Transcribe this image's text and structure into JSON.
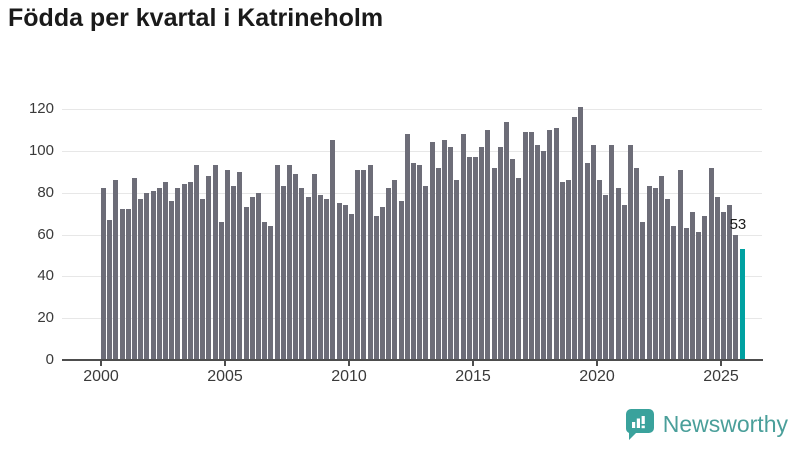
{
  "title": "Födda per kvartal i Katrineholm",
  "annotation": {
    "last_value_label": "53"
  },
  "footer": {
    "brand": "Newsworthy"
  },
  "colors": {
    "bar": "#6d6d78",
    "highlight": "#00a1a1",
    "grid": "#e7e7e7",
    "axis": "#4d4d4d",
    "brand_teal": "#3aa29c"
  },
  "chart_data": {
    "type": "bar",
    "title": "Födda per kvartal i Katrineholm",
    "xlabel": "",
    "ylabel": "",
    "grid": true,
    "ylim": [
      0,
      130
    ],
    "y_ticks": [
      0,
      20,
      40,
      60,
      80,
      100,
      120
    ],
    "x_tick_labels": [
      "2000",
      "2005",
      "2010",
      "2015",
      "2020",
      "2025"
    ],
    "quarters_per_year": 4,
    "start_year": 2000,
    "highlight_index": 103,
    "categories": [
      "2000-Q1",
      "2000-Q2",
      "2000-Q3",
      "2000-Q4",
      "2001-Q1",
      "2001-Q2",
      "2001-Q3",
      "2001-Q4",
      "2002-Q1",
      "2002-Q2",
      "2002-Q3",
      "2002-Q4",
      "2003-Q1",
      "2003-Q2",
      "2003-Q3",
      "2003-Q4",
      "2004-Q1",
      "2004-Q2",
      "2004-Q3",
      "2004-Q4",
      "2005-Q1",
      "2005-Q2",
      "2005-Q3",
      "2005-Q4",
      "2006-Q1",
      "2006-Q2",
      "2006-Q3",
      "2006-Q4",
      "2007-Q1",
      "2007-Q2",
      "2007-Q3",
      "2007-Q4",
      "2008-Q1",
      "2008-Q2",
      "2008-Q3",
      "2008-Q4",
      "2009-Q1",
      "2009-Q2",
      "2009-Q3",
      "2009-Q4",
      "2010-Q1",
      "2010-Q2",
      "2010-Q3",
      "2010-Q4",
      "2011-Q1",
      "2011-Q2",
      "2011-Q3",
      "2011-Q4",
      "2012-Q1",
      "2012-Q2",
      "2012-Q3",
      "2012-Q4",
      "2013-Q1",
      "2013-Q2",
      "2013-Q3",
      "2013-Q4",
      "2014-Q1",
      "2014-Q2",
      "2014-Q3",
      "2014-Q4",
      "2015-Q1",
      "2015-Q2",
      "2015-Q3",
      "2015-Q4",
      "2016-Q1",
      "2016-Q2",
      "2016-Q3",
      "2016-Q4",
      "2017-Q1",
      "2017-Q2",
      "2017-Q3",
      "2017-Q4",
      "2018-Q1",
      "2018-Q2",
      "2018-Q3",
      "2018-Q4",
      "2019-Q1",
      "2019-Q2",
      "2019-Q3",
      "2019-Q4",
      "2020-Q1",
      "2020-Q2",
      "2020-Q3",
      "2020-Q4",
      "2021-Q1",
      "2021-Q2",
      "2021-Q3",
      "2021-Q4",
      "2022-Q1",
      "2022-Q2",
      "2022-Q3",
      "2022-Q4",
      "2023-Q1",
      "2023-Q2",
      "2023-Q3",
      "2023-Q4",
      "2024-Q1",
      "2024-Q2",
      "2024-Q3",
      "2024-Q4",
      "2025-Q1",
      "2025-Q2",
      "2025-Q3",
      "2025-Q4"
    ],
    "values": [
      82,
      67,
      86,
      72,
      72,
      87,
      77,
      80,
      81,
      82,
      85,
      76,
      82,
      84,
      85,
      93,
      77,
      88,
      93,
      66,
      91,
      83,
      90,
      73,
      78,
      80,
      66,
      64,
      93,
      83,
      93,
      89,
      82,
      78,
      89,
      79,
      77,
      105,
      75,
      74,
      70,
      91,
      91,
      93,
      69,
      73,
      82,
      86,
      76,
      108,
      94,
      93,
      83,
      104,
      92,
      105,
      102,
      86,
      108,
      97,
      97,
      102,
      110,
      92,
      102,
      114,
      96,
      87,
      109,
      109,
      103,
      100,
      110,
      111,
      85,
      86,
      116,
      121,
      94,
      103,
      86,
      79,
      103,
      82,
      74,
      103,
      92,
      66,
      83,
      82,
      88,
      77,
      64,
      91,
      63,
      71,
      61,
      69,
      92,
      78,
      71,
      74,
      60,
      53
    ]
  }
}
